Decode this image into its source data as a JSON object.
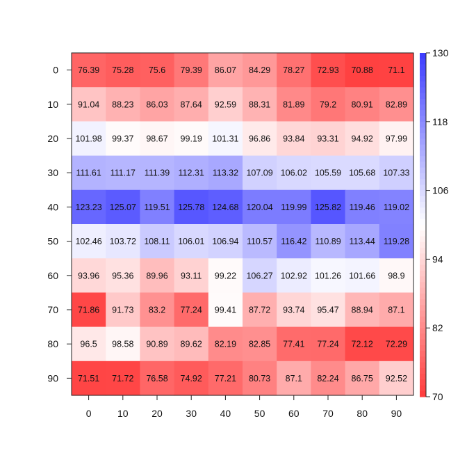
{
  "chart_data": {
    "type": "heatmap",
    "x_categories": [
      "0",
      "10",
      "20",
      "30",
      "40",
      "50",
      "60",
      "70",
      "80",
      "90"
    ],
    "y_categories": [
      "0",
      "10",
      "20",
      "30",
      "40",
      "50",
      "60",
      "70",
      "80",
      "90"
    ],
    "values": [
      [
        76.39,
        75.28,
        75.6,
        79.39,
        86.07,
        84.29,
        78.27,
        72.93,
        70.88,
        71.1
      ],
      [
        91.04,
        88.23,
        86.03,
        87.64,
        92.59,
        88.31,
        81.89,
        79.2,
        80.91,
        82.89
      ],
      [
        101.98,
        99.37,
        98.67,
        99.19,
        101.31,
        96.86,
        93.84,
        93.31,
        94.92,
        97.99
      ],
      [
        111.61,
        111.17,
        111.39,
        112.31,
        113.32,
        107.09,
        106.02,
        105.59,
        105.68,
        107.33
      ],
      [
        123.23,
        125.07,
        119.51,
        125.78,
        124.68,
        120.04,
        119.99,
        125.82,
        119.46,
        119.02
      ],
      [
        102.46,
        103.72,
        108.11,
        106.01,
        106.94,
        110.57,
        116.42,
        110.89,
        113.44,
        119.28
      ],
      [
        93.96,
        95.36,
        89.96,
        93.11,
        99.22,
        106.27,
        102.92,
        101.26,
        101.66,
        98.9
      ],
      [
        71.86,
        91.73,
        83.2,
        77.24,
        99.41,
        87.72,
        93.74,
        95.47,
        88.94,
        87.1
      ],
      [
        96.5,
        98.58,
        90.89,
        89.62,
        82.19,
        82.85,
        77.41,
        77.24,
        72.12,
        72.29
      ],
      [
        71.51,
        71.72,
        76.58,
        74.92,
        77.21,
        80.73,
        87.1,
        82.24,
        86.75,
        92.52
      ]
    ],
    "colorbar": {
      "min": 70,
      "max": 130,
      "ticks": [
        "70",
        "82",
        "94",
        "106",
        "118",
        "130"
      ],
      "low_color": "#ff3b3b",
      "mid_color": "#ffffff",
      "high_color": "#3b3bff"
    },
    "title": "",
    "xlabel": "",
    "ylabel": ""
  }
}
